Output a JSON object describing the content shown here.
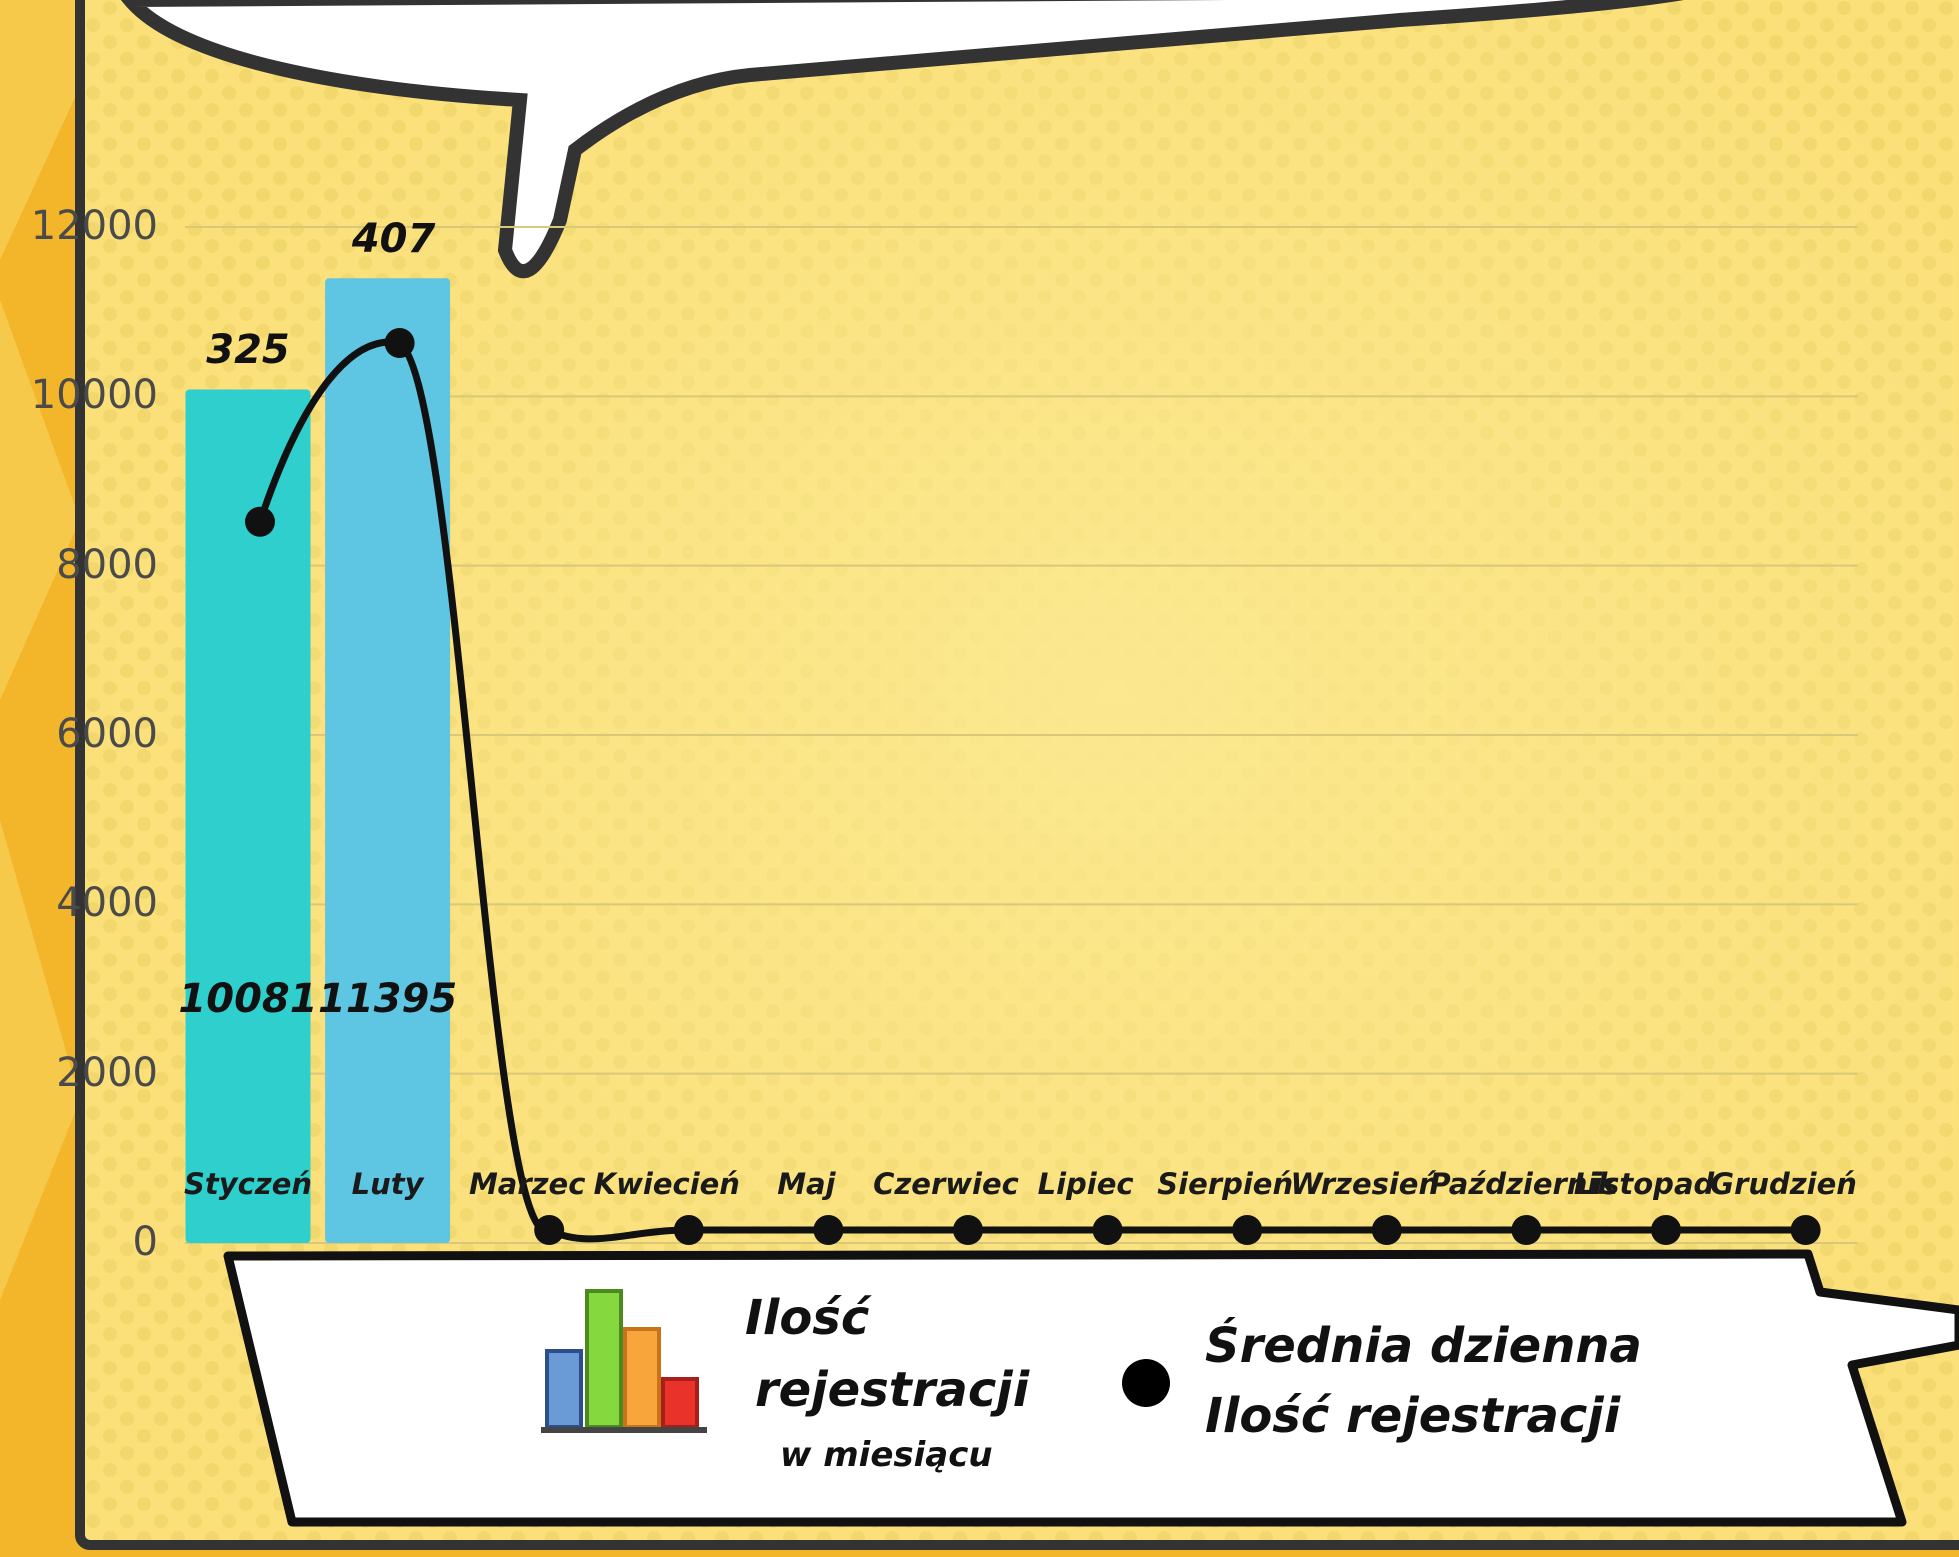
{
  "chart_data": {
    "type": "bar",
    "categories": [
      "Styczeń",
      "Luty",
      "Marzec",
      "Kwiecień",
      "Maj",
      "Czerwiec",
      "Lipiec",
      "Sierpień",
      "Wrzesień",
      "Październik",
      "Listopad",
      "Grudzień"
    ],
    "series": [
      {
        "name": "Ilość rejestracji w miesiącu",
        "type": "bar",
        "values": [
          10081,
          11395,
          0,
          0,
          0,
          0,
          0,
          0,
          0,
          0,
          0,
          0
        ],
        "colors": [
          "#2ecfcc",
          "#5ec6e3"
        ]
      },
      {
        "name": "Średnia dzienna Ilość rejestracji",
        "type": "line",
        "values": [
          325,
          407,
          0,
          0,
          0,
          0,
          0,
          0,
          0,
          0,
          0,
          0
        ],
        "color": "#111111"
      }
    ],
    "bar_labels": [
      "10081",
      "11395"
    ],
    "line_labels": [
      "325",
      "407"
    ],
    "yticks": [
      "0",
      "2000",
      "4000",
      "6000",
      "8000",
      "10000",
      "12000"
    ],
    "ylim": [
      0,
      12000
    ],
    "grid": true,
    "legend": {
      "bar_title_line1": "Ilość",
      "bar_title_line2": "rejestracji",
      "bar_title_line3": "w miesiącu",
      "line_title_line1": "Średnia dzienna",
      "line_title_line2": "Ilość rejestracji",
      "placement": "bottom"
    }
  }
}
